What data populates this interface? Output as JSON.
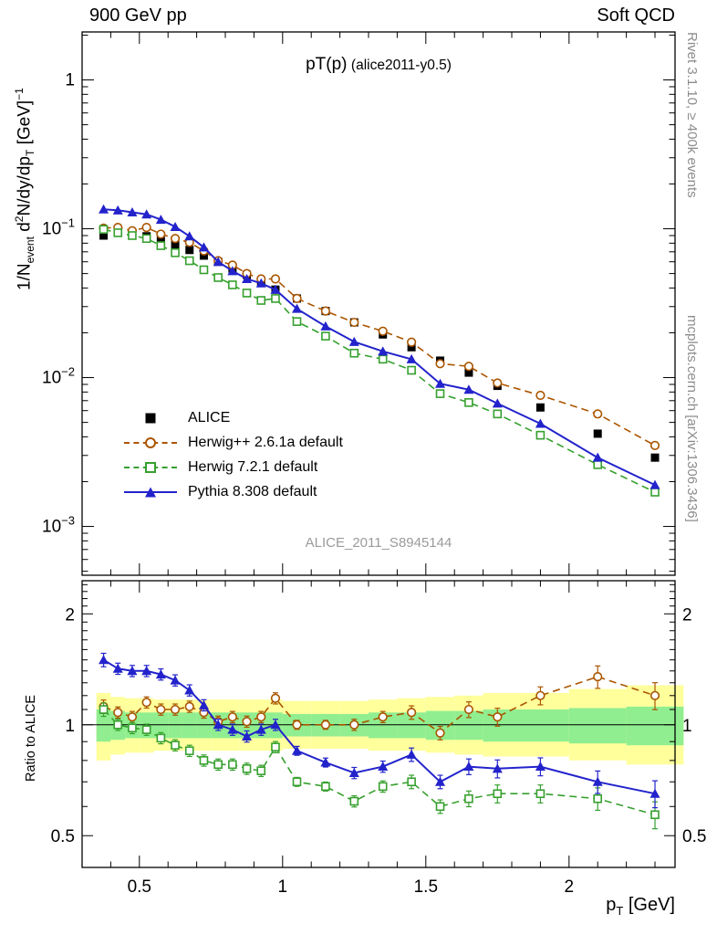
{
  "header": {
    "left": "900 GeV pp",
    "right": "Soft QCD"
  },
  "side_notes": {
    "top": "Rivet 3.1.10, ≥ 400k events",
    "bottom": "mcplots.cern.ch [arXiv:1306.3436]"
  },
  "title": {
    "main": "pT(p)",
    "detail": "(alice2011-y0.5)"
  },
  "watermark": "ALICE_2011_S8945144",
  "labels": {
    "y_main": {
      "p1": "1/N",
      "s1": "event",
      "p2": " d",
      "e1": "2",
      "p3": "N/dy/dp",
      "s2": "T",
      "p4": " [GeV]",
      "e2": "−1"
    },
    "y_ratio": "Ratio to ALICE",
    "x": {
      "p1": "p",
      "s1": "T",
      "p2": " [GeV]"
    }
  },
  "legend": [
    {
      "label": "ALICE",
      "marker": "filled-square",
      "color": "#000000",
      "line": "none"
    },
    {
      "label": "Herwig++ 2.6.1a default",
      "marker": "open-circle",
      "color": "#aa5500",
      "line": "dashed"
    },
    {
      "label": "Herwig 7.2.1 default",
      "marker": "open-square",
      "color": "#36a02e",
      "line": "dashed"
    },
    {
      "label": "Pythia 8.308 default",
      "marker": "filled-triangle",
      "color": "#2323cc",
      "line": "solid"
    }
  ],
  "axes": {
    "x": {
      "min": 0.3,
      "max": 2.37,
      "major": [
        0.5,
        1,
        1.5,
        2
      ],
      "labels": [
        "0.5",
        "1",
        "1.5",
        "2"
      ],
      "minor_step": 0.1
    },
    "y_main": {
      "min": 0.00047,
      "max": 2.1,
      "scale": "log",
      "decades": [
        {
          "v": 1,
          "t": "1",
          "e": null
        },
        {
          "v": 0.1,
          "t": "10",
          "e": "−1"
        },
        {
          "v": 0.01,
          "t": "10",
          "e": "−2"
        },
        {
          "v": 0.001,
          "t": "10",
          "e": "−3"
        }
      ]
    },
    "y_ratio": {
      "min": 0.41,
      "max": 2.46,
      "scale": "log",
      "major": [
        {
          "v": 2,
          "t": "2"
        },
        {
          "v": 1,
          "t": "1"
        },
        {
          "v": 0.5,
          "t": "0.5"
        }
      ]
    }
  },
  "chart_data": {
    "type": "line",
    "title": "pT(p) (alice2011-y0.5)",
    "xlabel": "pT [GeV]",
    "ylabel": "1/N_event d2N/dy/dpT [GeV]-1",
    "ratio_label": "Ratio to ALICE",
    "x_range": [
      0.3,
      2.37
    ],
    "y_main_range": [
      0.00047,
      2.1
    ],
    "ratio_range": [
      0.41,
      2.46
    ],
    "x": [
      0.375,
      0.425,
      0.475,
      0.525,
      0.575,
      0.625,
      0.675,
      0.725,
      0.775,
      0.825,
      0.875,
      0.925,
      0.975,
      1.05,
      1.15,
      1.25,
      1.35,
      1.45,
      1.55,
      1.65,
      1.75,
      1.9,
      2.1,
      2.3
    ],
    "bin_edges": [
      0.35,
      0.4,
      0.45,
      0.5,
      0.55,
      0.6,
      0.65,
      0.7,
      0.75,
      0.8,
      0.85,
      0.9,
      0.95,
      1.0,
      1.1,
      1.2,
      1.3,
      1.4,
      1.5,
      1.6,
      1.7,
      1.8,
      2.0,
      2.2,
      2.4
    ],
    "err_rel": [
      0.03,
      0.025,
      0.025,
      0.025,
      0.025,
      0.025,
      0.025,
      0.025,
      0.025,
      0.025,
      0.025,
      0.025,
      0.025,
      0.02,
      0.02,
      0.025,
      0.025,
      0.03,
      0.03,
      0.035,
      0.04,
      0.04,
      0.05,
      0.06
    ],
    "series": [
      {
        "name": "ALICE",
        "color": "#000000",
        "marker": "filled-square",
        "line": "none",
        "values": [
          0.09,
          0.094,
          0.092,
          0.089,
          0.084,
          0.078,
          0.072,
          0.066,
          0.06,
          0.054,
          0.049,
          0.044,
          0.039,
          0.034,
          0.028,
          0.0235,
          0.0195,
          0.016,
          0.013,
          0.0108,
          0.0088,
          0.0063,
          0.0042,
          0.0029
        ],
        "ratio": null
      },
      {
        "name": "Herwig++ 2.6.1a default",
        "color": "#aa5500",
        "marker": "open-circle",
        "line": "dashed",
        "values": [
          0.101,
          0.102,
          0.097,
          0.102,
          0.092,
          0.086,
          0.081,
          0.071,
          0.061,
          0.057,
          0.05,
          0.046,
          0.046,
          0.034,
          0.028,
          0.0235,
          0.0205,
          0.0173,
          0.0124,
          0.0119,
          0.0092,
          0.0076,
          0.0057,
          0.0035
        ],
        "ratio": [
          1.12,
          1.08,
          1.05,
          1.15,
          1.1,
          1.1,
          1.12,
          1.08,
          1.02,
          1.05,
          1.02,
          1.05,
          1.18,
          1.0,
          1.0,
          1.0,
          1.05,
          1.08,
          0.95,
          1.1,
          1.05,
          1.2,
          1.35,
          1.2
        ]
      },
      {
        "name": "Herwig 7.2.1 default",
        "color": "#36a02e",
        "marker": "open-square",
        "line": "dashed",
        "values": [
          0.099,
          0.094,
          0.09,
          0.086,
          0.077,
          0.069,
          0.061,
          0.053,
          0.047,
          0.042,
          0.037,
          0.033,
          0.034,
          0.0238,
          0.019,
          0.0146,
          0.0133,
          0.0112,
          0.0078,
          0.0068,
          0.0057,
          0.0041,
          0.0026,
          0.0017
        ],
        "ratio": [
          1.1,
          1.0,
          0.98,
          0.97,
          0.92,
          0.88,
          0.85,
          0.8,
          0.78,
          0.78,
          0.76,
          0.75,
          0.87,
          0.7,
          0.68,
          0.62,
          0.68,
          0.7,
          0.6,
          0.63,
          0.65,
          0.65,
          0.63,
          0.57
        ]
      },
      {
        "name": "Pythia 8.308 default",
        "color": "#2323cc",
        "marker": "filled-triangle",
        "line": "solid",
        "values": [
          0.135,
          0.133,
          0.129,
          0.125,
          0.115,
          0.103,
          0.089,
          0.075,
          0.06,
          0.052,
          0.046,
          0.043,
          0.039,
          0.029,
          0.0221,
          0.0174,
          0.015,
          0.0133,
          0.0091,
          0.0083,
          0.0067,
          0.0049,
          0.0029,
          0.0019
        ],
        "ratio": [
          1.5,
          1.42,
          1.4,
          1.4,
          1.37,
          1.32,
          1.24,
          1.13,
          1.0,
          0.97,
          0.93,
          0.97,
          1.0,
          0.85,
          0.79,
          0.74,
          0.77,
          0.83,
          0.7,
          0.77,
          0.76,
          0.77,
          0.7,
          0.65
        ]
      }
    ],
    "bands": {
      "yellow_color": "#ffff9c",
      "green_color": "#90ee90",
      "yellow_lo": [
        0.8,
        0.83,
        0.84,
        0.84,
        0.85,
        0.85,
        0.85,
        0.85,
        0.85,
        0.85,
        0.85,
        0.85,
        0.85,
        0.86,
        0.86,
        0.86,
        0.85,
        0.85,
        0.84,
        0.83,
        0.82,
        0.82,
        0.8,
        0.78
      ],
      "yellow_hi": [
        1.22,
        1.19,
        1.18,
        1.18,
        1.17,
        1.17,
        1.17,
        1.17,
        1.17,
        1.17,
        1.17,
        1.17,
        1.17,
        1.16,
        1.16,
        1.16,
        1.17,
        1.18,
        1.19,
        1.2,
        1.22,
        1.22,
        1.25,
        1.28
      ],
      "green_lo": [
        0.9,
        0.91,
        0.92,
        0.92,
        0.92,
        0.92,
        0.92,
        0.92,
        0.92,
        0.92,
        0.92,
        0.92,
        0.92,
        0.93,
        0.93,
        0.93,
        0.92,
        0.92,
        0.91,
        0.91,
        0.9,
        0.9,
        0.89,
        0.88
      ],
      "green_hi": [
        1.1,
        1.09,
        1.08,
        1.08,
        1.08,
        1.08,
        1.08,
        1.08,
        1.08,
        1.08,
        1.08,
        1.08,
        1.08,
        1.07,
        1.07,
        1.07,
        1.08,
        1.08,
        1.09,
        1.09,
        1.1,
        1.1,
        1.11,
        1.12
      ]
    }
  }
}
